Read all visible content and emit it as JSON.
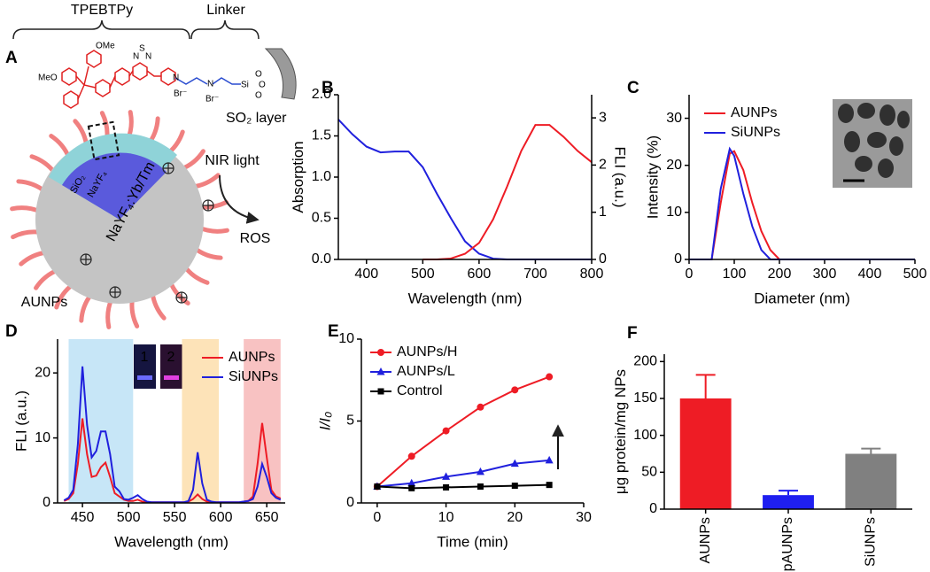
{
  "schematic": {
    "panel_label": "A",
    "brace_labels": [
      "TPEBTPy",
      "Linker"
    ],
    "structure_labels": [
      "OMe",
      "MeO",
      "N",
      "S",
      "N",
      "N",
      "Br⁻",
      "N",
      "Br⁻",
      "Si",
      "O",
      "O",
      "O"
    ],
    "layer_label": "SO₂ layer",
    "shell_labels": [
      "SiO₂",
      "NaYF₄",
      "NaYF₄:Yb/Tm"
    ],
    "light": "NIR light",
    "product": "ROS",
    "particle": "AUNPs"
  },
  "chart_data": [
    {
      "type": "line",
      "label": "B",
      "xlabel": "Wavelength (nm)",
      "ylabel": "Absorption",
      "y2label": "FLI (a.u.)",
      "x": [
        350,
        375,
        400,
        425,
        450,
        475,
        500,
        525,
        550,
        575,
        600,
        625,
        650,
        675,
        700,
        725,
        750,
        775,
        800
      ],
      "series": [
        {
          "name": "Absorption",
          "color": "#2020dd",
          "values": [
            1.7,
            1.52,
            1.37,
            1.3,
            1.31,
            1.31,
            1.12,
            0.8,
            0.5,
            0.22,
            0.07,
            0.01,
            0,
            0,
            0,
            0,
            0,
            0,
            0
          ]
        },
        {
          "name": "FLI",
          "color": "#ee1c25",
          "axis": "y2",
          "values": [
            null,
            null,
            null,
            null,
            null,
            null,
            0,
            0,
            0.02,
            0.12,
            0.35,
            0.85,
            1.55,
            2.3,
            2.85,
            2.85,
            2.6,
            2.3,
            2.06
          ]
        }
      ],
      "xlim": [
        350,
        800
      ],
      "xticks": [
        400,
        500,
        600,
        700,
        800
      ],
      "ylim": [
        0,
        2
      ],
      "yticks": [
        {
          "value": 0,
          "label": "0.0"
        },
        0.5,
        {
          "value": 1,
          "label": "1.0"
        },
        1.5,
        {
          "value": 2,
          "label": "2.0"
        }
      ],
      "y2lim": [
        0,
        3.49
      ],
      "y2ticks": [
        0,
        1,
        2,
        3
      ]
    },
    {
      "type": "line",
      "label": "C",
      "xlabel": "Diameter  (nm)",
      "ylabel": "Intensity (%)",
      "legend": "upper left",
      "x": [
        0,
        50,
        70,
        90,
        100,
        120,
        140,
        160,
        180,
        200,
        500
      ],
      "series": [
        {
          "name": "AUNPs",
          "color": "#ee1c25",
          "values": [
            0,
            0,
            12,
            22.5,
            23,
            19,
            12,
            6,
            2,
            0,
            0
          ]
        },
        {
          "name": "SiUNPs",
          "color": "#2020dd",
          "values": [
            0,
            0,
            15,
            23.5,
            22,
            14,
            7,
            2,
            0,
            0,
            0
          ]
        }
      ],
      "xlim": [
        0,
        500
      ],
      "xticks": [
        0,
        100,
        200,
        300,
        400,
        500
      ],
      "ylim": [
        0,
        35
      ],
      "yticks": [
        0,
        10,
        20,
        30
      ]
    },
    {
      "type": "line",
      "label": "D",
      "xlabel": "Wavelength (nm)",
      "ylabel": "FLI (a.u.)",
      "legend": "upper right",
      "inset_labels": [
        "1",
        "2"
      ],
      "highlight_ranges": [
        {
          "range": [
            435,
            505
          ],
          "color": "#c7e6f7"
        },
        {
          "range": [
            558,
            598
          ],
          "color": "#fde3b8"
        },
        {
          "range": [
            625,
            665
          ],
          "color": "#f8c2c2"
        }
      ],
      "x": [
        430,
        435,
        440,
        445,
        450,
        455,
        460,
        465,
        470,
        475,
        480,
        485,
        490,
        495,
        500,
        505,
        510,
        515,
        520,
        525,
        530,
        535,
        540,
        545,
        550,
        555,
        560,
        565,
        570,
        575,
        580,
        585,
        590,
        595,
        600,
        605,
        610,
        615,
        620,
        625,
        630,
        635,
        640,
        645,
        650,
        655,
        660,
        665
      ],
      "series": [
        {
          "name": "AUNPs",
          "color": "#ee1c25",
          "values": [
            0.3,
            0.6,
            1.5,
            6,
            13,
            7.5,
            4,
            4.2,
            5.5,
            6.2,
            4,
            1.5,
            1,
            0.5,
            0.3,
            0.3,
            0.5,
            0.2,
            0.1,
            0.1,
            0.1,
            0.1,
            0.1,
            0.1,
            0.1,
            0.1,
            0.1,
            0.2,
            0.6,
            1.3,
            0.6,
            0.2,
            0.1,
            0.1,
            0.1,
            0.1,
            0.1,
            0.1,
            0.1,
            0.2,
            0.3,
            1,
            6,
            12.3,
            7,
            2,
            1,
            0.7
          ]
        },
        {
          "name": "SiUNPs",
          "color": "#2020dd",
          "values": [
            0.4,
            0.8,
            2,
            9,
            21,
            12,
            7,
            8,
            11,
            11,
            7.5,
            2.5,
            1.8,
            0.6,
            0.5,
            0.8,
            1.2,
            0.6,
            0.2,
            0.1,
            0.1,
            0.1,
            0.1,
            0.1,
            0.1,
            0.1,
            0.1,
            0.3,
            2,
            7.8,
            3,
            0.5,
            0.2,
            0.1,
            0.1,
            0.1,
            0.1,
            0.1,
            0.1,
            0.2,
            0.3,
            0.6,
            2.5,
            6,
            4,
            1.5,
            0.8,
            0.5
          ]
        }
      ],
      "xlim": [
        423,
        670
      ],
      "xticks": [
        450,
        500,
        550,
        600,
        650
      ],
      "ylim": [
        0,
        25.2
      ],
      "yticks": [
        0,
        10,
        20
      ]
    },
    {
      "type": "line",
      "label": "E",
      "xlabel": "Time (min)",
      "ylabel": "I/I₀",
      "ylabel_italic": true,
      "legend": "upper left",
      "x": [
        0,
        5,
        10,
        15,
        20,
        25
      ],
      "series": [
        {
          "name": "AUNPs/H",
          "color": "#ee1c25",
          "marker": "circle",
          "values": [
            1,
            2.85,
            4.4,
            5.85,
            6.9,
            7.7
          ]
        },
        {
          "name": "AUNPs/L",
          "color": "#2020dd",
          "marker": "triangle",
          "values": [
            1,
            1.2,
            1.6,
            1.9,
            2.4,
            2.6
          ]
        },
        {
          "name": "Control",
          "color": "#000000",
          "marker": "square",
          "values": [
            1,
            0.9,
            0.95,
            1,
            1.05,
            1.1
          ]
        }
      ],
      "xlim": [
        -2.3,
        30
      ],
      "xticks": [
        0,
        10,
        20,
        30
      ],
      "ylim": [
        0,
        10
      ],
      "yticks": [
        0,
        5,
        10
      ]
    },
    {
      "type": "bar",
      "label": "F",
      "ylabel": "μg protein/mg NPs",
      "categories": [
        "AUNPs",
        "pAUNPs",
        "SiUNPs"
      ],
      "values": [
        150,
        19,
        75
      ],
      "errors": [
        32,
        6,
        7
      ],
      "colors": [
        "#ee1c25",
        "#1f1ff0",
        "#808080"
      ],
      "ylim": [
        0,
        210
      ],
      "yticks": [
        0,
        50,
        100,
        150,
        200
      ]
    }
  ]
}
